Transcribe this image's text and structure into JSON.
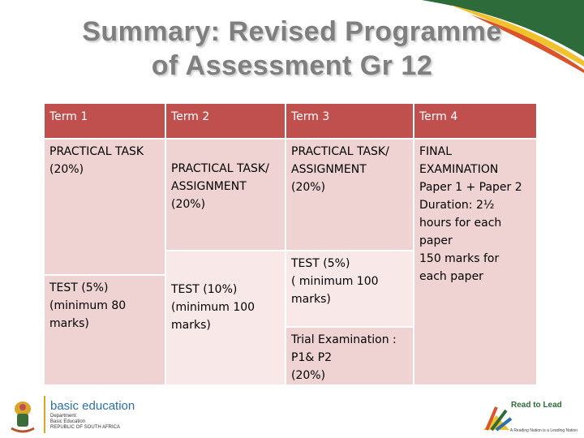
{
  "title_lines": [
    "Summary: Revised Programme",
    "of Assessment Gr 12"
  ],
  "table": {
    "headers": [
      "Term 1",
      "Term 2",
      "Term 3",
      "Term 4"
    ],
    "term1": {
      "practical": "PRACTICAL TASK\n(20%)",
      "test": "TEST (5%)\n(minimum 80\nmarks)"
    },
    "term2": {
      "practical": "PRACTICAL TASK/\nASSIGNMENT\n(20%)",
      "test": "TEST (10%)\n(minimum 100\nmarks)"
    },
    "term3": {
      "practical": "PRACTICAL TASK/\nASSIGNMENT\n(20%)",
      "test": "TEST (5%)\n ( minimum 100\nmarks)",
      "trial": "Trial Examination :\nP1& P2\n(20%)"
    },
    "term4": {
      "final": "FINAL\nEXAMINATION\nPaper 1 + Paper 2\nDuration: 2½\nhours for each\npaper\n150 marks for\neach paper"
    }
  },
  "footer": {
    "left_org": "basic education",
    "left_sub1": "Department:",
    "left_sub2": "Basic Education",
    "left_sub3": "REPUBLIC OF SOUTH AFRICA",
    "right_title": "Read to Lead",
    "right_tagline": "A Reading Nation is a Leading Nation"
  },
  "colors": {
    "header": "#c0504d",
    "body": "#efd3d2",
    "title": "#7f7f7f",
    "swoosh_green": "#2e6b3a",
    "swoosh_yellow": "#f2c12e",
    "swoosh_red": "#d9532b"
  }
}
